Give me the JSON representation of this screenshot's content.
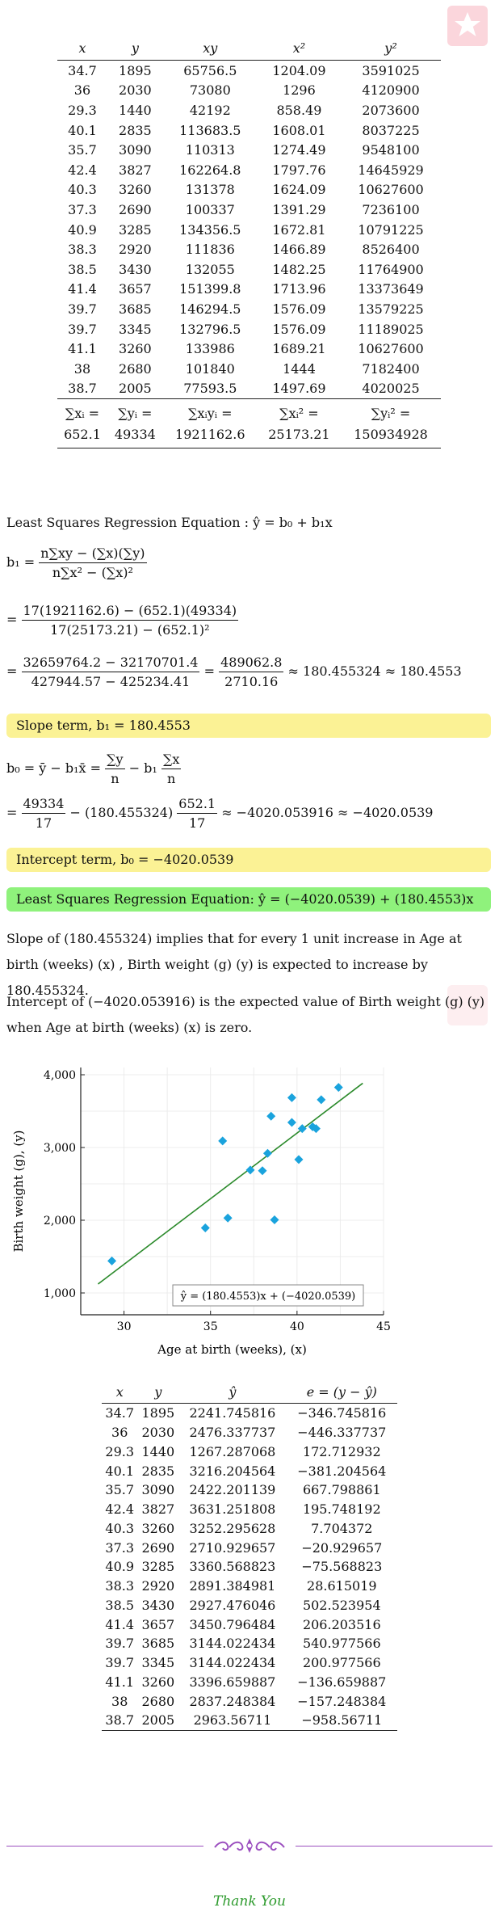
{
  "table1": {
    "headers": [
      "x",
      "y",
      "xy",
      "x²",
      "y²"
    ],
    "rows": [
      [
        "34.7",
        "1895",
        "65756.5",
        "1204.09",
        "3591025"
      ],
      [
        "36",
        "2030",
        "73080",
        "1296",
        "4120900"
      ],
      [
        "29.3",
        "1440",
        "42192",
        "858.49",
        "2073600"
      ],
      [
        "40.1",
        "2835",
        "113683.5",
        "1608.01",
        "8037225"
      ],
      [
        "35.7",
        "3090",
        "110313",
        "1274.49",
        "9548100"
      ],
      [
        "42.4",
        "3827",
        "162264.8",
        "1797.76",
        "14645929"
      ],
      [
        "40.3",
        "3260",
        "131378",
        "1624.09",
        "10627600"
      ],
      [
        "37.3",
        "2690",
        "100337",
        "1391.29",
        "7236100"
      ],
      [
        "40.9",
        "3285",
        "134356.5",
        "1672.81",
        "10791225"
      ],
      [
        "38.3",
        "2920",
        "111836",
        "1466.89",
        "8526400"
      ],
      [
        "38.5",
        "3430",
        "132055",
        "1482.25",
        "11764900"
      ],
      [
        "41.4",
        "3657",
        "151399.8",
        "1713.96",
        "13373649"
      ],
      [
        "39.7",
        "3685",
        "146294.5",
        "1576.09",
        "13579225"
      ],
      [
        "39.7",
        "3345",
        "132796.5",
        "1576.09",
        "11189025"
      ],
      [
        "41.1",
        "3260",
        "133986",
        "1689.21",
        "10627600"
      ],
      [
        "38",
        "2680",
        "101840",
        "1444",
        "7182400"
      ],
      [
        "38.7",
        "2005",
        "77593.5",
        "1497.69",
        "4020025"
      ]
    ],
    "sum_labels": [
      "∑xᵢ =",
      "∑yᵢ =",
      "∑xᵢyᵢ =",
      "∑xᵢ² =",
      "∑yᵢ² ="
    ],
    "totals": [
      "652.1",
      "49334",
      "1921162.6",
      "25173.21",
      "150934928"
    ]
  },
  "work": {
    "lsre_heading": "Least Squares Regression Equation : ŷ = b₀ + b₁x",
    "b1_lhs": "b₁ =",
    "b1_num": "n∑xy − (∑x)(∑y)",
    "b1_den": "n∑x² − (∑x)²",
    "b1_sub_eq": "=",
    "b1_sub_num": "17(1921162.6) − (652.1)(49334)",
    "b1_sub_den": "17(25173.21) − (652.1)²",
    "b1_calc_eq": "=",
    "b1_calc_num": "32659764.2 − 32170701.4",
    "b1_calc_den": "427944.57 − 425234.41",
    "b1_calc_mid": "=",
    "b1_calc_num2": "489062.8",
    "b1_calc_den2": "2710.16",
    "b1_calc_tail": "≈ 180.455324 ≈ 180.4553",
    "slope_box": "Slope term, b₁ = 180.4553",
    "b0_lhs": "b₀ = ȳ − b₁x̄ =",
    "b0_num1": "∑y",
    "b0_den1": "n",
    "b0_mid": "− b₁",
    "b0_num2": "∑x",
    "b0_den2": "n",
    "b0_sub_eq": "=",
    "b0_sub_num1": "49334",
    "b0_sub_den1": "17",
    "b0_sub_mid": "− (180.455324)",
    "b0_sub_num2": "652.1",
    "b0_sub_den2": "17",
    "b0_sub_tail": "≈ −4020.053916 ≈ −4020.0539",
    "intercept_box": "Intercept term, b₀ = −4020.0539",
    "final_box": "Least Squares Regression Equation:  ŷ = (−4020.0539) + (180.4553)x",
    "slope_text": "Slope of (180.455324) implies that for every 1 unit increase in Age at birth (weeks) (x) , Birth weight (g) (y) is expected to increase by 180.455324.",
    "intercept_text": "Intercept of (−4020.053916) is the expected value of Birth weight (g) (y) when Age at birth (weeks) (x) is zero."
  },
  "chart_data": {
    "type": "scatter",
    "xlabel": "Age at birth (weeks), (x)",
    "ylabel": "Birth weight (g), (y)",
    "xlim": [
      27.5,
      45
    ],
    "ylim": [
      700,
      4100
    ],
    "xticks": [
      30,
      35,
      40,
      45
    ],
    "yticks": [
      1000,
      2000,
      3000,
      4000
    ],
    "ytick_labels": [
      "1,000",
      "2,000",
      "3,000",
      "4,000"
    ],
    "grid": true,
    "points": [
      [
        34.7,
        1895
      ],
      [
        36,
        2030
      ],
      [
        29.3,
        1440
      ],
      [
        40.1,
        2835
      ],
      [
        35.7,
        3090
      ],
      [
        42.4,
        3827
      ],
      [
        40.3,
        3260
      ],
      [
        37.3,
        2690
      ],
      [
        40.9,
        3285
      ],
      [
        38.3,
        2920
      ],
      [
        38.5,
        3430
      ],
      [
        41.4,
        3657
      ],
      [
        39.7,
        3685
      ],
      [
        39.7,
        3345
      ],
      [
        41.1,
        3260
      ],
      [
        38,
        2680
      ],
      [
        38.7,
        2005
      ]
    ],
    "regression": {
      "intercept": -4020.0539,
      "slope": 180.4553,
      "x_range": [
        28.5,
        43.8
      ]
    },
    "legend_text": "ŷ = (180.4553)x + (−4020.0539)",
    "legend_position": "bottom-right",
    "point_color": "#1aa3dd",
    "line_color": "#2b8a2b"
  },
  "table2": {
    "headers": [
      "x",
      "y",
      "ŷ",
      "e = (y − ŷ)"
    ],
    "rows": [
      [
        "34.7",
        "1895",
        "2241.745816",
        "−346.745816"
      ],
      [
        "36",
        "2030",
        "2476.337737",
        "−446.337737"
      ],
      [
        "29.3",
        "1440",
        "1267.287068",
        "172.712932"
      ],
      [
        "40.1",
        "2835",
        "3216.204564",
        "−381.204564"
      ],
      [
        "35.7",
        "3090",
        "2422.201139",
        "667.798861"
      ],
      [
        "42.4",
        "3827",
        "3631.251808",
        "195.748192"
      ],
      [
        "40.3",
        "3260",
        "3252.295628",
        "7.704372"
      ],
      [
        "37.3",
        "2690",
        "2710.929657",
        "−20.929657"
      ],
      [
        "40.9",
        "3285",
        "3360.568823",
        "−75.568823"
      ],
      [
        "38.3",
        "2920",
        "2891.384981",
        "28.615019"
      ],
      [
        "38.5",
        "3430",
        "2927.476046",
        "502.523954"
      ],
      [
        "41.4",
        "3657",
        "3450.796484",
        "206.203516"
      ],
      [
        "39.7",
        "3685",
        "3144.022434",
        "540.977566"
      ],
      [
        "39.7",
        "3345",
        "3144.022434",
        "200.977566"
      ],
      [
        "41.1",
        "3260",
        "3396.659887",
        "−136.659887"
      ],
      [
        "38",
        "2680",
        "2837.248384",
        "−157.248384"
      ],
      [
        "38.7",
        "2005",
        "2963.56711",
        "−958.56711"
      ]
    ]
  },
  "footer": {
    "thanks": "Thank You"
  },
  "icons": {
    "logo": "star-logo-icon",
    "ornament": "floral-ornament-icon"
  }
}
